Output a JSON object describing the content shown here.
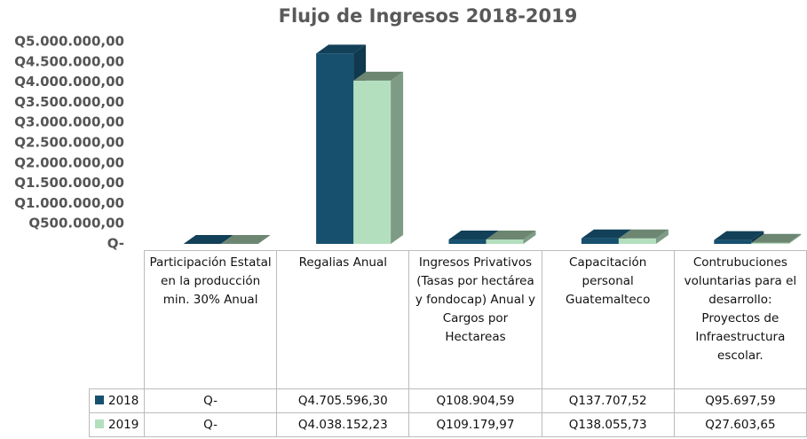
{
  "chart_data": {
    "type": "bar3d",
    "title": "Flujo de Ingresos 2018-2019",
    "categories": [
      "Participación Estatal en la producción min. 30% Anual",
      "Regalias Anual",
      "Ingresos Privativos (Tasas por hectárea y fondocap) Anual y Cargos por Hectareas",
      "Capacitación personal Guatemalteco",
      "Contrubuciones voluntarias para el desarrollo: Proyectos de Infraestructura escolar."
    ],
    "series": [
      {
        "name": "2018",
        "color": "#17506f",
        "values": [
          0,
          4705596.3,
          108904.59,
          137707.52,
          95697.59
        ],
        "value_labels": [
          "Q-",
          "Q4.705.596,30",
          "Q108.904,59",
          "Q137.707,52",
          "Q95.697,59"
        ]
      },
      {
        "name": "2019",
        "color": "#b4dfbe",
        "values": [
          0,
          4038152.23,
          109179.97,
          138055.73,
          27603.65
        ],
        "value_labels": [
          "Q-",
          "Q4.038.152,23",
          "Q109.179,97",
          "Q138.055,73",
          "Q27.603,65"
        ]
      }
    ],
    "ylim": [
      0,
      5000000
    ],
    "yticks": [
      {
        "value": 0,
        "label": "Q-"
      },
      {
        "value": 500000,
        "label": "Q500.000,00"
      },
      {
        "value": 1000000,
        "label": "Q1.000.000,00"
      },
      {
        "value": 1500000,
        "label": "Q1.500.000,00"
      },
      {
        "value": 2000000,
        "label": "Q2.000.000,00"
      },
      {
        "value": 2500000,
        "label": "Q2.500.000,00"
      },
      {
        "value": 3000000,
        "label": "Q3.000.000,00"
      },
      {
        "value": 3500000,
        "label": "Q3.500.000,00"
      },
      {
        "value": 4000000,
        "label": "Q4.000.000,00"
      },
      {
        "value": 4500000,
        "label": "Q4.500.000,00"
      },
      {
        "value": 5000000,
        "label": "Q5.000.000,00"
      }
    ]
  }
}
